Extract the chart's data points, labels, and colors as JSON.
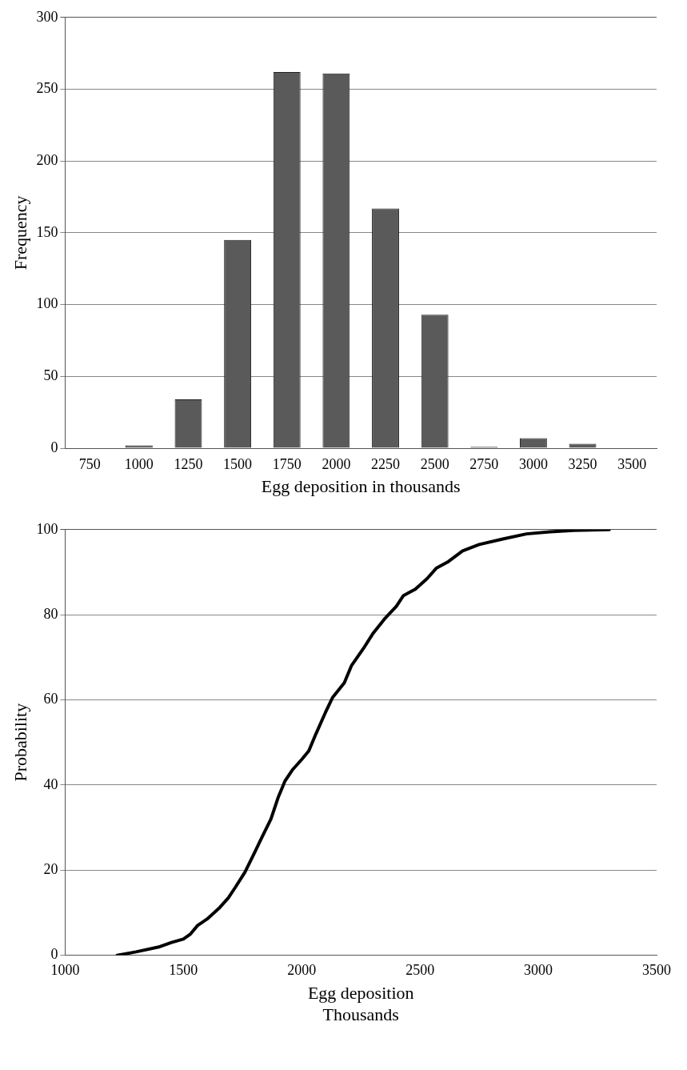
{
  "chart_data": [
    {
      "type": "bar",
      "xlabel": "Egg deposition in thousands",
      "ylabel": "Frequency",
      "categories": [
        "750",
        "1000",
        "1250",
        "1500",
        "1750",
        "2000",
        "2250",
        "2500",
        "2750",
        "3000",
        "3250",
        "3500"
      ],
      "values": [
        0,
        2,
        34,
        145,
        262,
        261,
        167,
        93,
        1,
        7,
        3,
        0
      ],
      "color": "#5a5a5a",
      "ylim": [
        0,
        300
      ],
      "yticks": [
        0,
        50,
        100,
        150,
        200,
        250,
        300
      ],
      "grid": "y",
      "legend": false
    },
    {
      "type": "line",
      "xlabel": "Egg deposition\nThousands",
      "ylabel": "Probability",
      "x": [
        1220,
        1300,
        1400,
        1450,
        1500,
        1530,
        1560,
        1600,
        1650,
        1690,
        1720,
        1760,
        1800,
        1830,
        1870,
        1900,
        1930,
        1960,
        2000,
        2030,
        2060,
        2100,
        2130,
        2180,
        2210,
        2260,
        2300,
        2350,
        2400,
        2430,
        2480,
        2530,
        2570,
        2620,
        2680,
        2750,
        2850,
        2950,
        3050,
        3150,
        3300
      ],
      "values": [
        0,
        0.8,
        2,
        3,
        3.8,
        5,
        7,
        8.5,
        11,
        13.5,
        16,
        19.5,
        24,
        27.5,
        32,
        37,
        41,
        43.5,
        46,
        48,
        52,
        57,
        60.5,
        64,
        68,
        72,
        75.5,
        79,
        82,
        84.5,
        86,
        88.5,
        91,
        92.5,
        95,
        96.5,
        97.8,
        99,
        99.5,
        99.8,
        100
      ],
      "color": "#000000",
      "xlim": [
        1000,
        3500
      ],
      "xticks": [
        1000,
        1500,
        2000,
        2500,
        3000,
        3500
      ],
      "ylim": [
        0,
        100
      ],
      "yticks": [
        0,
        20,
        40,
        60,
        80,
        100
      ],
      "grid": "y",
      "marker": "none",
      "line_style": "solid",
      "legend": false
    }
  ]
}
